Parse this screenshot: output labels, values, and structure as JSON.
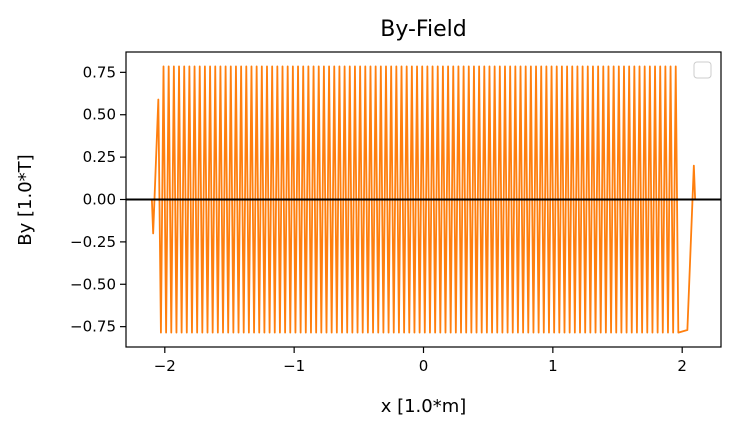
{
  "chart_data": {
    "type": "line",
    "title": "By-Field",
    "xlabel": "x [1.0*m]",
    "ylabel": "By [1.0*T]",
    "xlim": [
      -2.3,
      2.3
    ],
    "ylim": [
      -0.87,
      0.87
    ],
    "x_ticks": [
      -2,
      -1,
      0,
      1,
      2
    ],
    "x_tick_labels": [
      "−2",
      "−1",
      "0",
      "1",
      "2"
    ],
    "y_ticks": [
      0.75,
      0.5,
      0.25,
      0.0,
      -0.25,
      -0.5,
      -0.75
    ],
    "y_tick_labels": [
      "0.75",
      "0.50",
      "0.25",
      "0.00",
      "−0.25",
      "−0.50",
      "−0.75"
    ],
    "grid": false,
    "legend": {
      "placement": "top-right",
      "entries": []
    },
    "series": [
      {
        "color": "#ff7f0e",
        "x_range": [
          -2.09,
          2.09
        ],
        "amplitude": 0.785,
        "oscillation_period": 0.04,
        "edge_peaks": {
          "left": [
            -0.2,
            0.59
          ],
          "right": [
            -0.77,
            0.2
          ]
        }
      }
    ],
    "reference_line": {
      "y": 0.0,
      "color": "#000000"
    }
  }
}
